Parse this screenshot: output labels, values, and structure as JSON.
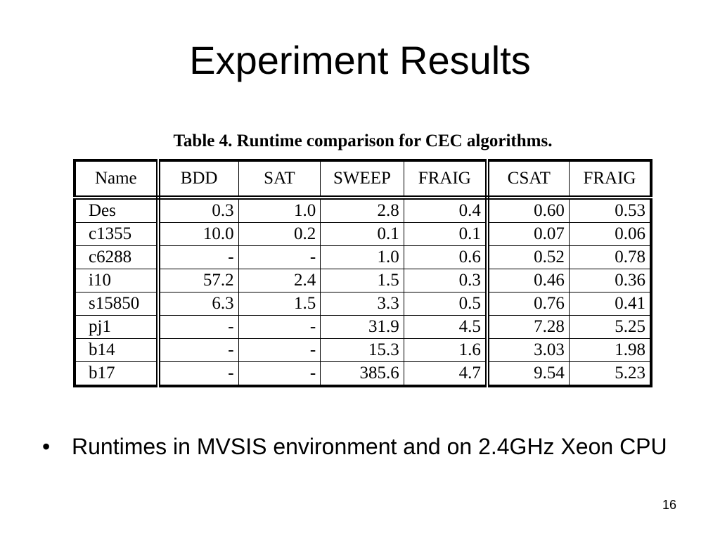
{
  "slide": {
    "title": "Experiment Results",
    "page_number": "16"
  },
  "table": {
    "caption": "Table 4. Runtime comparison for CEC algorithms.",
    "headers": [
      "Name",
      "BDD",
      "SAT",
      "SWEEP",
      "FRAIG",
      "CSAT",
      "FRAIG"
    ],
    "rows": [
      [
        "Des",
        "0.3",
        "1.0",
        "2.8",
        "0.4",
        "0.60",
        "0.53"
      ],
      [
        "c1355",
        "10.0",
        "0.2",
        "0.1",
        "0.1",
        "0.07",
        "0.06"
      ],
      [
        "c6288",
        "-",
        "-",
        "1.0",
        "0.6",
        "0.52",
        "0.78"
      ],
      [
        "i10",
        "57.2",
        "2.4",
        "1.5",
        "0.3",
        "0.46",
        "0.36"
      ],
      [
        "s15850",
        "6.3",
        "1.5",
        "3.3",
        "0.5",
        "0.76",
        "0.41"
      ],
      [
        "pj1",
        "-",
        "-",
        "31.9",
        "4.5",
        "7.28",
        "5.25"
      ],
      [
        "b14",
        "-",
        "-",
        "15.3",
        "1.6",
        "3.03",
        "1.98"
      ],
      [
        "b17",
        "-",
        "-",
        "385.6",
        "4.7",
        "9.54",
        "5.23"
      ]
    ]
  },
  "bullets": [
    {
      "marker": "•",
      "text": "Runtimes in MVSIS environment and on 2.4GHz Xeon CPU"
    }
  ]
}
